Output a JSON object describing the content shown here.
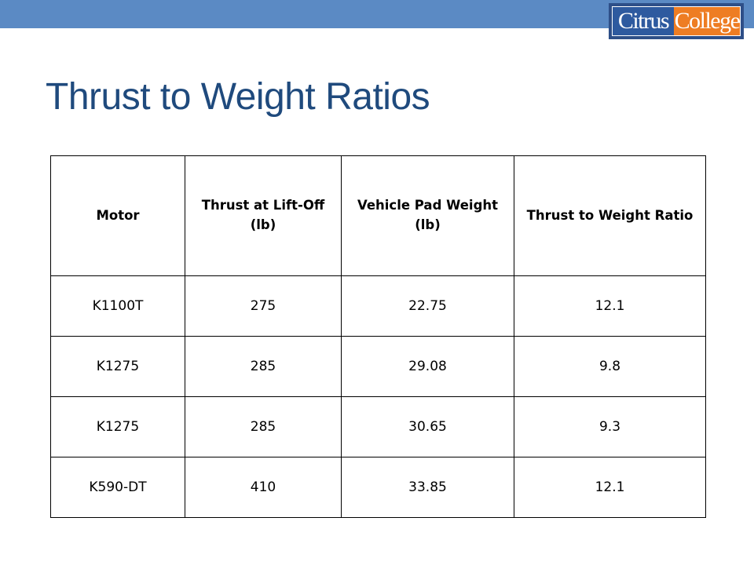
{
  "header": {
    "accent_color": "#5b8ac4",
    "logo": {
      "text_part1": "Citrus",
      "text_part2": "College",
      "part1_color": "#2e5a9f",
      "part2_color": "#ee7d23"
    }
  },
  "slide": {
    "title": "Thrust to Weight Ratios",
    "title_color": "#1f4a7d"
  },
  "table": {
    "columns": [
      "Motor",
      "Thrust at Lift-Off (lb)",
      "Vehicle Pad Weight (lb)",
      "Thrust to Weight Ratio"
    ],
    "rows": [
      [
        "K1100T",
        "275",
        "22.75",
        "12.1"
      ],
      [
        "K1275",
        "285",
        "29.08",
        "9.8"
      ],
      [
        "K1275",
        "285",
        "30.65",
        "9.3"
      ],
      [
        "K590-DT",
        "410",
        "33.85",
        "12.1"
      ]
    ]
  }
}
